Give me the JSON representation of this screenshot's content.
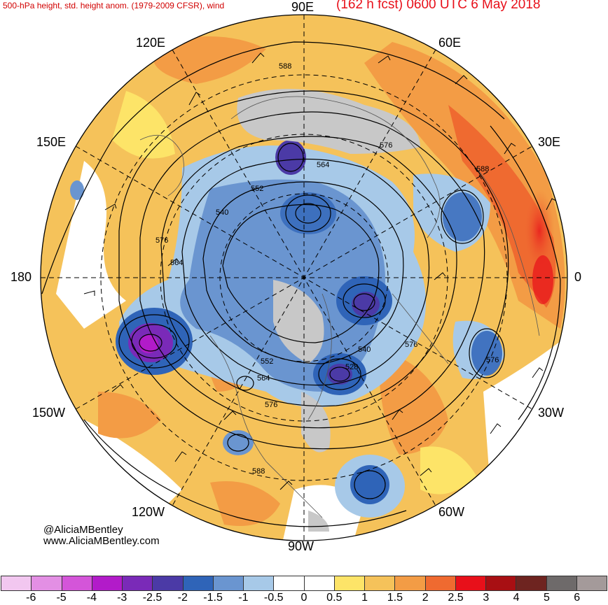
{
  "title": {
    "left": "500-hPa height, std. height anom. (1979-2009 CFSR), wind",
    "right": "(162 h fcst) 0600 UTC 6 May 2018"
  },
  "longitude_labels": {
    "n90e": "90E",
    "n60e": "60E",
    "n30e": "30E",
    "n120e": "120E",
    "n150e": "150E",
    "n180": "180",
    "n0": "0",
    "n150w": "150W",
    "n30w": "30W",
    "n120w": "120W",
    "n60w": "60W",
    "n90w": "90W"
  },
  "height_contour_labels": [
    "588",
    "576",
    "564",
    "552",
    "540",
    "576",
    "564",
    "588",
    "576",
    "552",
    "528",
    "540",
    "576",
    "564",
    "576",
    "588"
  ],
  "credit": {
    "handle": "@AliciaMBentley",
    "website": "www.AliciaMBentley.com"
  },
  "colorbar": {
    "colors": [
      "#f2c7f0",
      "#e38fe4",
      "#d455d9",
      "#b21bc9",
      "#7a2ab8",
      "#4b3aa6",
      "#2f64b8",
      "#6a95d0",
      "#a7c9e8",
      "#ffffff",
      "#ffffff",
      "#fde468",
      "#f5c25a",
      "#f39c45",
      "#ef6a30",
      "#e8101a",
      "#a80f13",
      "#6e2420",
      "#6e6a6a",
      "#a49a9a"
    ],
    "labels": [
      "-6",
      "-5",
      "-4",
      "-3",
      "-2.5",
      "-2",
      "-1.5",
      "-1",
      "-0.5",
      "0",
      "0.5",
      "1",
      "1.5",
      "2",
      "2.5",
      "3",
      "4",
      "5",
      "6"
    ]
  },
  "colors": {
    "positive_anomaly": "#f39c45",
    "negative_anomaly": "#6a95d0",
    "below_terrain": "#c8c8c8"
  }
}
